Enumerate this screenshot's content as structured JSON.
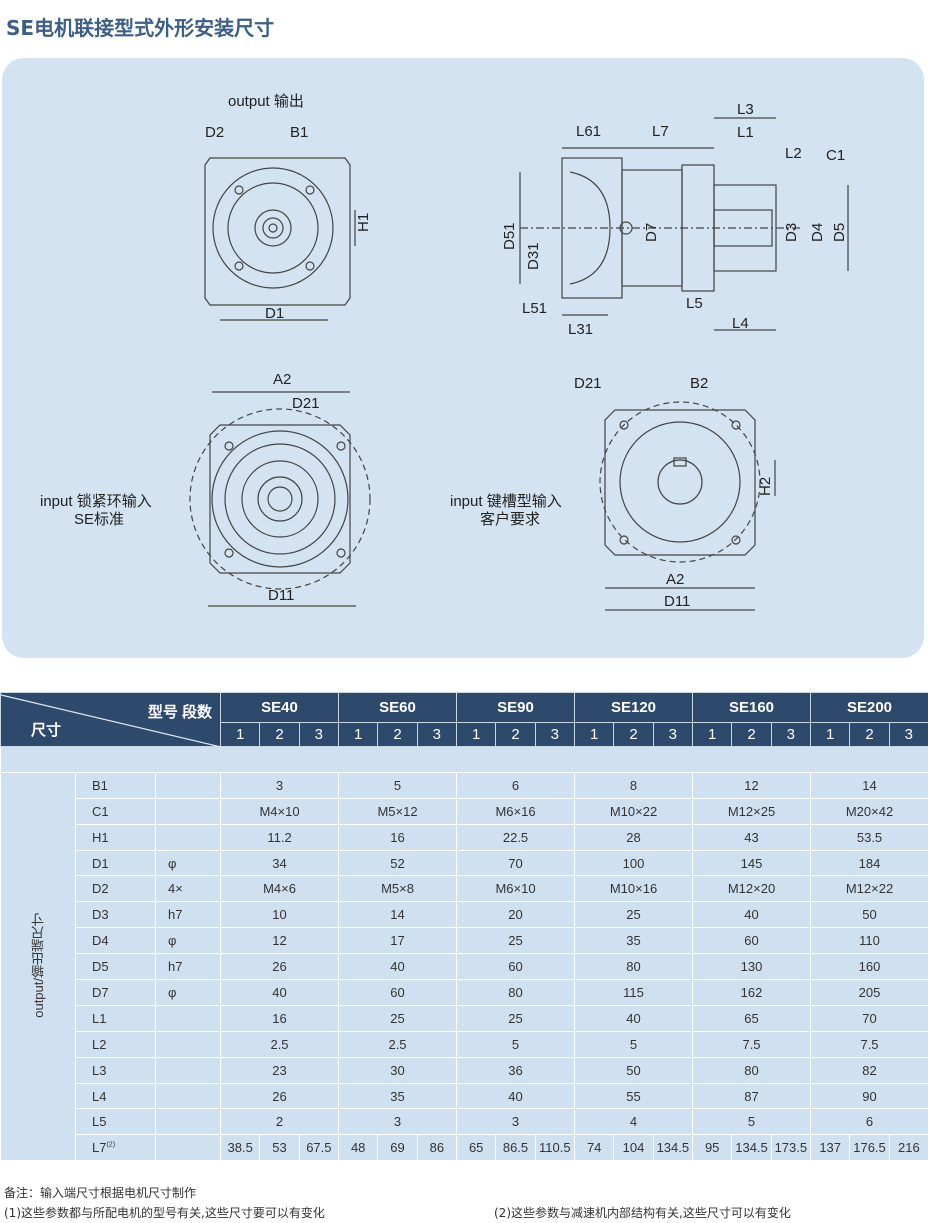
{
  "title": "SE电机联接型式外形安装尺寸",
  "drawings": {
    "output_view": {
      "caption": "output 输出",
      "labels": [
        "D2",
        "B1",
        "H1",
        "D1"
      ]
    },
    "side_view": {
      "labels": [
        "L61",
        "L7",
        "L3",
        "L1",
        "L2",
        "C1",
        "D51",
        "D31",
        "D7",
        "D3",
        "D4",
        "D5",
        "L51",
        "L31",
        "L5",
        "L4"
      ]
    },
    "input_clamp": {
      "caption1": "input 锁紧环输入",
      "caption2": "SE标准",
      "labels": [
        "A2",
        "D21",
        "D11"
      ]
    },
    "input_key": {
      "caption1": "input 键槽型输入",
      "caption2": "客户要求",
      "labels": [
        "D21",
        "B2",
        "H2",
        "A2",
        "D11"
      ]
    }
  },
  "table": {
    "header_left": "尺寸",
    "header_right": "型号 段数",
    "side_label": "output/输出端尺寸",
    "models": [
      "SE40",
      "SE60",
      "SE90",
      "SE120",
      "SE160",
      "SE200"
    ],
    "stages": [
      "1",
      "2",
      "3"
    ],
    "rows": [
      {
        "name": "B1",
        "sym": "",
        "v": [
          "3",
          "5",
          "6",
          "8",
          "12",
          "14"
        ]
      },
      {
        "name": "C1",
        "sym": "",
        "v": [
          "M4×10",
          "M5×12",
          "M6×16",
          "M10×22",
          "M12×25",
          "M20×42"
        ]
      },
      {
        "name": "H1",
        "sym": "",
        "v": [
          "11.2",
          "16",
          "22.5",
          "28",
          "43",
          "53.5"
        ]
      },
      {
        "name": "D1",
        "sym": "φ",
        "v": [
          "34",
          "52",
          "70",
          "100",
          "145",
          "184"
        ]
      },
      {
        "name": "D2",
        "sym": "4×",
        "v": [
          "M4×6",
          "M5×8",
          "M6×10",
          "M10×16",
          "M12×20",
          "M12×22"
        ]
      },
      {
        "name": "D3",
        "sym": "h7",
        "v": [
          "10",
          "14",
          "20",
          "25",
          "40",
          "50"
        ]
      },
      {
        "name": "D4",
        "sym": "φ",
        "v": [
          "12",
          "17",
          "25",
          "35",
          "60",
          "110"
        ]
      },
      {
        "name": "D5",
        "sym": "h7",
        "v": [
          "26",
          "40",
          "60",
          "80",
          "130",
          "160"
        ]
      },
      {
        "name": "D7",
        "sym": "φ",
        "v": [
          "40",
          "60",
          "80",
          "115",
          "162",
          "205"
        ]
      },
      {
        "name": "L1",
        "sym": "",
        "v": [
          "16",
          "25",
          "25",
          "40",
          "65",
          "70"
        ]
      },
      {
        "name": "L2",
        "sym": "",
        "v": [
          "2.5",
          "2.5",
          "5",
          "5",
          "7.5",
          "7.5"
        ]
      },
      {
        "name": "L3",
        "sym": "",
        "v": [
          "23",
          "30",
          "36",
          "50",
          "80",
          "82"
        ]
      },
      {
        "name": "L4",
        "sym": "",
        "v": [
          "26",
          "35",
          "40",
          "55",
          "87",
          "90"
        ]
      },
      {
        "name": "L5",
        "sym": "",
        "v": [
          "2",
          "3",
          "3",
          "4",
          "5",
          "6"
        ]
      }
    ],
    "l7": {
      "name": "L7",
      "sup": "(2)",
      "v": [
        "38.5",
        "53",
        "67.5",
        "48",
        "69",
        "86",
        "65",
        "86.5",
        "110.5",
        "74",
        "104",
        "134.5",
        "95",
        "134.5",
        "173.5",
        "137",
        "176.5",
        "216"
      ]
    }
  },
  "notes": {
    "remark": "备注：输入端尺寸根据电机尺寸制作",
    "note1": "(1)这些参数都与所配电机的型号有关,这些尺寸要可以有变化",
    "note2": "(2)这些参数与减速机内部结构有关,这些尺寸可以有变化"
  },
  "colors": {
    "title": "#3b5f86",
    "header": "#2d4a6c",
    "panel": "#d3e3f1",
    "cell": "#cfe1f0"
  }
}
